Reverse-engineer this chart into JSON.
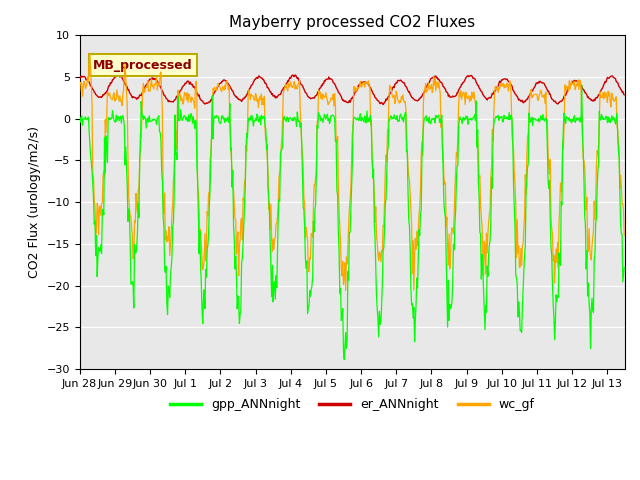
{
  "title": "Mayberry processed CO2 Fluxes",
  "ylabel": "CO2 Flux (urology/m2/s)",
  "ylim": [
    -30,
    10
  ],
  "yticks": [
    -30,
    -25,
    -20,
    -15,
    -10,
    -5,
    0,
    5,
    10
  ],
  "legend_label": "MB_processed",
  "legend_box_facecolor": "#ffffcc",
  "legend_box_edgecolor": "#bbaa00",
  "legend_label_color": "#8b0000",
  "gpp_color": "#00ff00",
  "er_color": "#cc0000",
  "wc_color": "#ffa500",
  "bg_color": "#e8e8e8",
  "xtick_labels": [
    "Jun 28",
    "Jun 29",
    "Jun 30",
    "Jul 1",
    "Jul 2",
    "Jul 3",
    "Jul 4",
    "Jul 5",
    "Jul 6",
    "Jul 7",
    "Jul 8",
    "Jul 9",
    "Jul 10",
    "Jul 11",
    "Jul 12",
    "Jul 13"
  ],
  "xlim": [
    0,
    15.5
  ],
  "figsize": [
    6.4,
    4.8
  ],
  "dpi": 100
}
